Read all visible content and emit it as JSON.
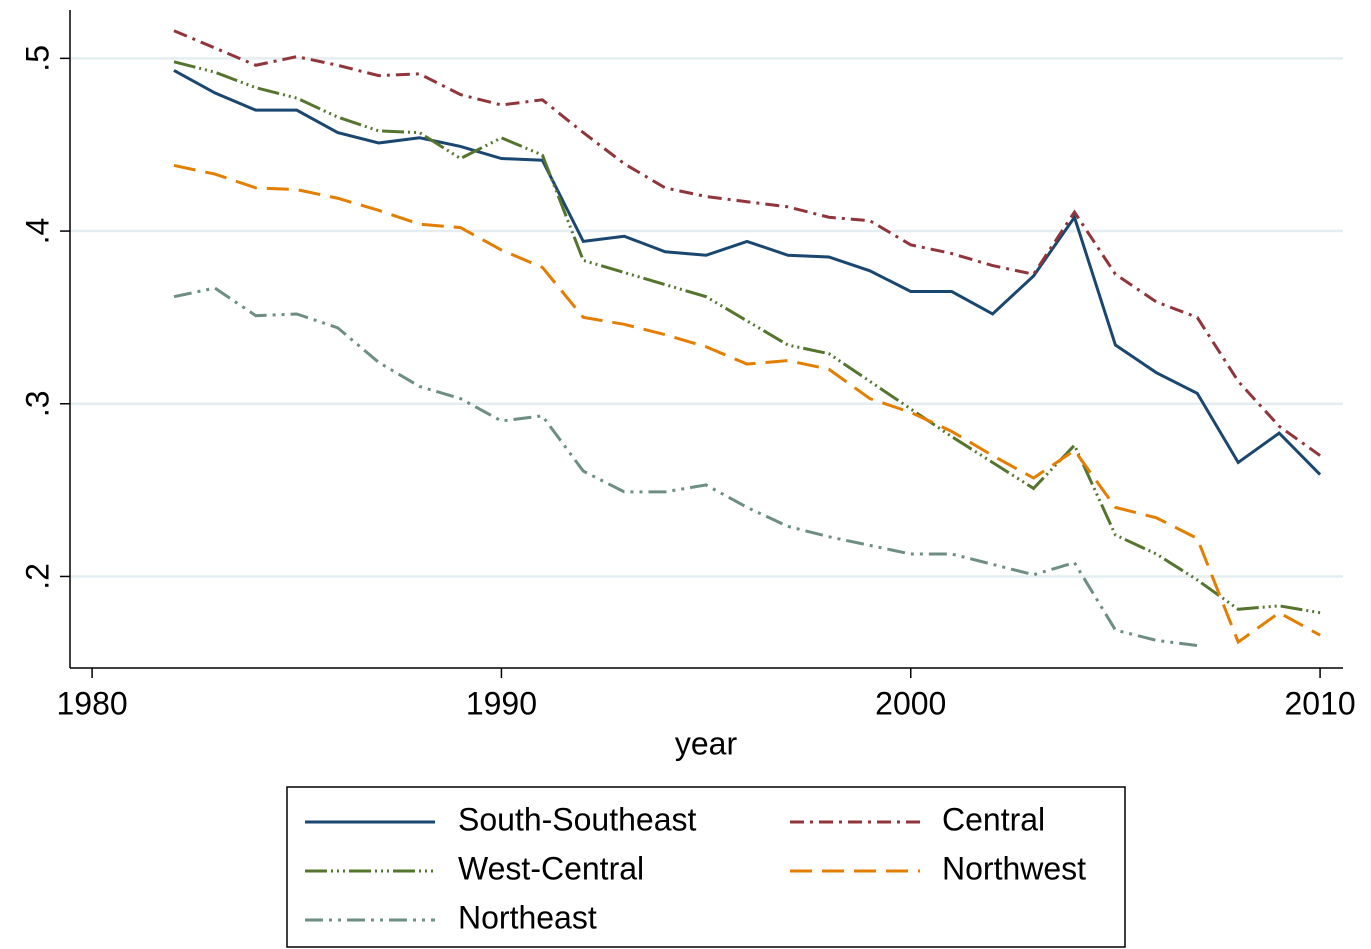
{
  "chart_data": {
    "type": "line",
    "x_label": "year",
    "x": [
      1982,
      1983,
      1984,
      1985,
      1986,
      1987,
      1988,
      1989,
      1990,
      1991,
      1992,
      1993,
      1994,
      1995,
      1996,
      1997,
      1998,
      1999,
      2000,
      2001,
      2002,
      2003,
      2004,
      2005,
      2006,
      2007,
      2008,
      2009,
      2010
    ],
    "series": [
      {
        "name": "South-Southeast",
        "color": "#1a476f",
        "dash": "solid",
        "values": [
          0.493,
          0.48,
          0.47,
          0.47,
          0.457,
          0.451,
          0.454,
          0.449,
          0.442,
          0.441,
          0.394,
          0.397,
          0.388,
          0.386,
          0.394,
          0.386,
          0.385,
          0.377,
          0.365,
          0.365,
          0.352,
          0.374,
          0.408,
          0.334,
          0.318,
          0.306,
          0.266,
          0.283,
          0.259
        ]
      },
      {
        "name": "Central",
        "color": "#90353b",
        "dash": "dash-dot",
        "values": [
          0.516,
          0.506,
          0.496,
          0.501,
          0.496,
          0.49,
          0.491,
          0.479,
          0.473,
          0.476,
          0.457,
          0.439,
          0.425,
          0.42,
          0.417,
          0.414,
          0.408,
          0.406,
          0.392,
          0.387,
          0.38,
          0.375,
          0.411,
          0.375,
          0.359,
          0.35,
          0.313,
          0.287,
          0.27
        ]
      },
      {
        "name": "West-Central",
        "color": "#55752f",
        "dash": "long-dot",
        "values": [
          0.498,
          0.492,
          0.483,
          0.477,
          0.466,
          0.458,
          0.457,
          0.442,
          0.454,
          0.444,
          0.383,
          0.376,
          0.369,
          0.362,
          0.348,
          0.334,
          0.329,
          0.313,
          0.297,
          0.281,
          0.266,
          0.251,
          0.276,
          0.224,
          0.213,
          0.198,
          0.181,
          0.183,
          0.179
        ]
      },
      {
        "name": "Northwest",
        "color": "#e37e00",
        "dash": "long-dash",
        "values": [
          0.438,
          0.433,
          0.425,
          0.424,
          0.419,
          0.412,
          0.404,
          0.402,
          0.389,
          0.379,
          0.35,
          0.346,
          0.34,
          0.333,
          0.323,
          0.325,
          0.32,
          0.303,
          0.295,
          0.284,
          0.27,
          0.257,
          0.273,
          0.24,
          0.234,
          0.222,
          0.162,
          0.179,
          0.166
        ]
      },
      {
        "name": "Northeast",
        "color": "#6e8e84",
        "dash": "dash-dot-dot",
        "values": [
          0.362,
          0.367,
          0.351,
          0.352,
          0.344,
          0.324,
          0.31,
          0.303,
          0.29,
          0.293,
          0.261,
          0.249,
          0.249,
          0.253,
          0.24,
          0.229,
          0.223,
          0.218,
          0.213,
          0.213,
          0.207,
          0.201,
          0.208,
          0.169,
          0.163,
          0.16,
          null,
          null,
          null
        ]
      }
    ],
    "xlim": [
      1979.46,
      2010.56
    ],
    "xticks": [
      1980,
      1990,
      2000,
      2010
    ],
    "ylim": [
      0.147,
      0.528
    ],
    "yticks": [
      {
        "value": 0.2,
        "label": ".2"
      },
      {
        "value": 0.3,
        "label": ".3"
      },
      {
        "value": 0.4,
        "label": ".4"
      },
      {
        "value": 0.5,
        "label": ".5"
      }
    ],
    "grid": true,
    "legend": "bottom"
  }
}
